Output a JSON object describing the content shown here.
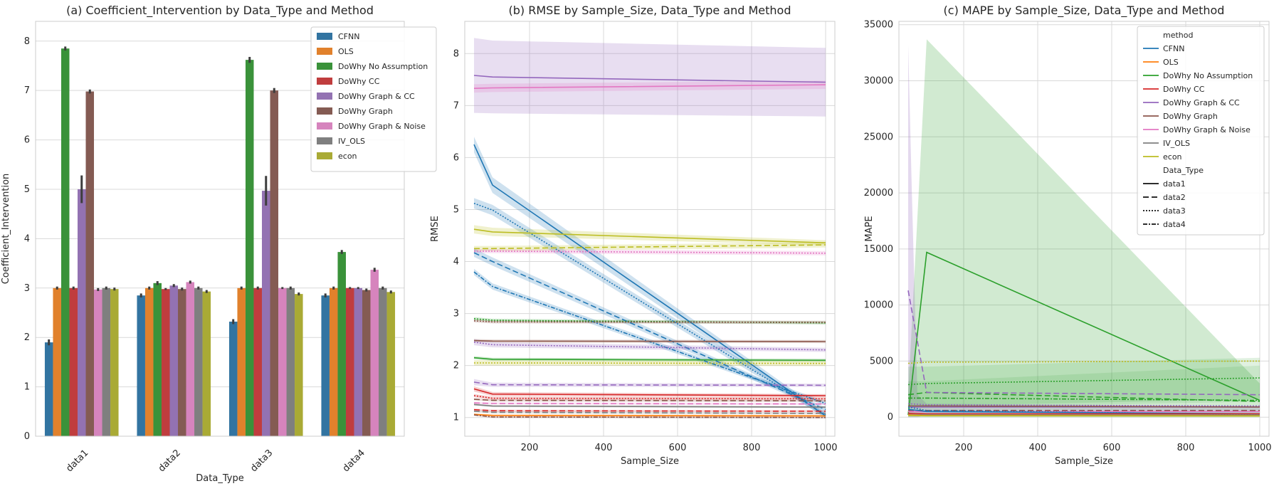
{
  "chart_data": [
    {
      "type": "bar",
      "title": "(a) Coefficient_Intervention by Data_Type and Method",
      "xlabel": "Data_Type",
      "ylabel": "Coefficient_Intervention",
      "ylim": [
        0,
        8.4
      ],
      "yticks": [
        0,
        1,
        2,
        3,
        4,
        5,
        6,
        7,
        8
      ],
      "grid": "y",
      "legend_position": "top-right",
      "categories": [
        "data1",
        "data2",
        "data3",
        "data4"
      ],
      "series": [
        {
          "name": "CFNN",
          "color": "#3274a1",
          "values": [
            1.9,
            2.85,
            2.32,
            2.85
          ],
          "err": [
            0.06,
            0.04,
            0.05,
            0.04
          ]
        },
        {
          "name": "OLS",
          "color": "#e1812c",
          "values": [
            3.0,
            3.0,
            3.0,
            3.0
          ],
          "err": [
            0.03,
            0.03,
            0.03,
            0.03
          ]
        },
        {
          "name": "DoWhy No Assumption",
          "color": "#3a923a",
          "values": [
            7.85,
            3.1,
            7.62,
            3.73
          ],
          "err": [
            0.04,
            0.04,
            0.06,
            0.04
          ]
        },
        {
          "name": "DoWhy CC",
          "color": "#c03d3e",
          "values": [
            3.0,
            2.98,
            3.0,
            3.0
          ],
          "err": [
            0.03,
            0.02,
            0.03,
            0.02
          ]
        },
        {
          "name": "DoWhy Graph & CC",
          "color": "#9372b2",
          "values": [
            5.0,
            3.05,
            4.97,
            3.0
          ],
          "err": [
            0.28,
            0.03,
            0.3,
            0.02
          ]
        },
        {
          "name": "DoWhy Graph",
          "color": "#845b53",
          "values": [
            6.98,
            2.98,
            7.0,
            2.96
          ],
          "err": [
            0.04,
            0.03,
            0.05,
            0.03
          ]
        },
        {
          "name": "DoWhy Graph & Noise",
          "color": "#d684bd",
          "values": [
            2.97,
            3.12,
            3.0,
            3.37
          ],
          "err": [
            0.03,
            0.03,
            0.02,
            0.04
          ]
        },
        {
          "name": "IV_OLS",
          "color": "#7f7f7f",
          "values": [
            3.0,
            3.0,
            3.0,
            3.0
          ],
          "err": [
            0.03,
            0.03,
            0.03,
            0.03
          ]
        },
        {
          "name": "econ",
          "color": "#a9aa35",
          "values": [
            2.98,
            2.93,
            2.88,
            2.92
          ],
          "err": [
            0.03,
            0.03,
            0.03,
            0.03
          ]
        }
      ]
    },
    {
      "type": "line",
      "title": "(b) RMSE by Sample_Size, Data_Type and Method",
      "xlabel": "Sample_Size",
      "ylabel": "RMSE",
      "xlim": [
        25,
        1025
      ],
      "ylim": [
        0.64,
        8.62
      ],
      "xticks": [
        200,
        400,
        600,
        800,
        1000
      ],
      "yticks": [
        1,
        2,
        3,
        4,
        5,
        6,
        7,
        8
      ],
      "grid": "both",
      "x": [
        50,
        100,
        1000
      ],
      "series": [
        {
          "method": "DoWhy Graph & CC",
          "data_type": "data1",
          "color": "#9467bd",
          "dash": "solid",
          "y": [
            7.58,
            7.55,
            7.45
          ],
          "band": [
            0.72,
            0.7,
            0.66
          ]
        },
        {
          "method": "DoWhy Graph & Noise",
          "data_type": "data1",
          "color": "#e377c2",
          "dash": "solid",
          "y": [
            7.33,
            7.34,
            7.4
          ],
          "band": [
            0.08,
            0.08,
            0.08
          ]
        },
        {
          "method": "CFNN",
          "data_type": "data1",
          "color": "#1f77b4",
          "dash": "solid",
          "y": [
            6.25,
            5.47,
            1.03
          ],
          "band": [
            0.15,
            0.15,
            0.05
          ]
        },
        {
          "method": "CFNN",
          "data_type": "data3",
          "color": "#1f77b4",
          "dash": "dotted",
          "y": [
            5.12,
            4.99,
            1.05
          ],
          "band": [
            0.1,
            0.1,
            0.05
          ]
        },
        {
          "method": "econ",
          "data_type": "data1",
          "color": "#bcbd22",
          "dash": "solid",
          "y": [
            4.62,
            4.57,
            4.36
          ],
          "band": [
            0.08,
            0.08,
            0.05
          ]
        },
        {
          "method": "econ",
          "data_type": "data2",
          "color": "#bcbd22",
          "dash": "dashed",
          "y": [
            4.25,
            4.25,
            4.32
          ],
          "band": [
            0.05,
            0.05,
            0.05
          ]
        },
        {
          "method": "DoWhy Graph & Noise",
          "data_type": "data3",
          "color": "#e377c2",
          "dash": "dotted",
          "y": [
            4.2,
            4.2,
            4.16
          ],
          "band": [
            0.04,
            0.04,
            0.04
          ]
        },
        {
          "method": "CFNN",
          "data_type": "data2",
          "color": "#1f77b4",
          "dash": "dashed",
          "y": [
            4.17,
            4.0,
            1.15
          ],
          "band": [
            0.08,
            0.08,
            0.04
          ]
        },
        {
          "method": "CFNN",
          "data_type": "data4",
          "color": "#1f77b4",
          "dash": "dashdot",
          "y": [
            3.8,
            3.52,
            1.27
          ],
          "band": [
            0.06,
            0.06,
            0.04
          ]
        },
        {
          "method": "DoWhy No Assumption",
          "data_type": "data3",
          "color": "#2ca02c",
          "dash": "dotted",
          "y": [
            2.9,
            2.87,
            2.82
          ],
          "band": [
            0.03,
            0.03,
            0.03
          ]
        },
        {
          "method": "DoWhy Graph",
          "data_type": "data3",
          "color": "#8c564b",
          "dash": "dotted",
          "y": [
            2.86,
            2.84,
            2.83
          ],
          "band": [
            0.03,
            0.03,
            0.03
          ]
        },
        {
          "method": "DoWhy Graph",
          "data_type": "data1",
          "color": "#8c564b",
          "dash": "solid",
          "y": [
            2.48,
            2.47,
            2.46
          ],
          "band": [
            0.03,
            0.03,
            0.03
          ]
        },
        {
          "method": "DoWhy Graph & CC",
          "data_type": "data3",
          "color": "#9467bd",
          "dash": "dotted",
          "y": [
            2.45,
            2.4,
            2.3
          ],
          "band": [
            0.06,
            0.05,
            0.04
          ]
        },
        {
          "method": "DoWhy No Assumption",
          "data_type": "data1",
          "color": "#2ca02c",
          "dash": "solid",
          "y": [
            2.15,
            2.12,
            2.1
          ],
          "band": [
            0.03,
            0.03,
            0.03
          ]
        },
        {
          "method": "econ",
          "data_type": "data3",
          "color": "#bcbd22",
          "dash": "dotted",
          "y": [
            2.05,
            2.05,
            2.04
          ],
          "band": [
            0.05,
            0.05,
            0.05
          ]
        },
        {
          "method": "DoWhy Graph & CC",
          "data_type": "data2",
          "color": "#9467bd",
          "dash": "dashed",
          "y": [
            1.68,
            1.63,
            1.62
          ],
          "band": [
            0.06,
            0.04,
            0.03
          ]
        },
        {
          "method": "DoWhy CC",
          "data_type": "data1",
          "color": "#d62728",
          "dash": "solid",
          "y": [
            1.55,
            1.45,
            1.42
          ],
          "band": [
            0.05,
            0.04,
            0.03
          ]
        },
        {
          "method": "DoWhy CC",
          "data_type": "data3",
          "color": "#d62728",
          "dash": "dotted",
          "y": [
            1.42,
            1.37,
            1.36
          ],
          "band": [
            0.03,
            0.03,
            0.03
          ]
        },
        {
          "method": "DoWhy Graph",
          "data_type": "data2",
          "color": "#8c564b",
          "dash": "dashed",
          "y": [
            1.35,
            1.33,
            1.32
          ],
          "band": [
            0.02,
            0.02,
            0.02
          ]
        },
        {
          "method": "DoWhy Graph & Noise",
          "data_type": "data2",
          "color": "#e377c2",
          "dash": "dashed",
          "y": [
            1.28,
            1.27,
            1.26
          ],
          "band": [
            0.02,
            0.02,
            0.02
          ]
        },
        {
          "method": "IV_OLS",
          "data_type": "data1",
          "color": "#7f7f7f",
          "dash": "solid",
          "y": [
            1.25,
            1.22,
            1.2
          ],
          "band": [
            0.02,
            0.02,
            0.02
          ]
        },
        {
          "method": "DoWhy CC",
          "data_type": "data2",
          "color": "#d62728",
          "dash": "dashed",
          "y": [
            1.15,
            1.13,
            1.12
          ],
          "band": [
            0.02,
            0.02,
            0.02
          ]
        },
        {
          "method": "IV_OLS",
          "data_type": "data2",
          "color": "#7f7f7f",
          "dash": "dashed",
          "y": [
            1.12,
            1.1,
            1.08
          ],
          "band": [
            0.02,
            0.02,
            0.02
          ]
        },
        {
          "method": "OLS",
          "data_type": "data1",
          "color": "#ff7f0e",
          "dash": "solid",
          "y": [
            1.06,
            1.04,
            1.03
          ],
          "band": [
            0.02,
            0.02,
            0.02
          ]
        },
        {
          "method": "DoWhy Graph",
          "data_type": "data4",
          "color": "#8c564b",
          "dash": "dashdot",
          "y": [
            1.05,
            1.01,
            1.0
          ],
          "band": [
            0.02,
            0.02,
            0.02
          ]
        }
      ]
    },
    {
      "type": "line",
      "title": "(c) MAPE by Sample_Size, Data_Type and Method",
      "xlabel": "Sample_Size",
      "ylabel": "MAPE",
      "xlim": [
        25,
        1025
      ],
      "ylim": [
        -1700,
        35300
      ],
      "xticks": [
        200,
        400,
        600,
        800,
        1000
      ],
      "yticks": [
        0,
        5000,
        10000,
        15000,
        20000,
        25000,
        30000,
        35000
      ],
      "grid": "both",
      "legend_position": "top-right",
      "legend": {
        "method_header": "method",
        "methods": [
          {
            "name": "CFNN",
            "color": "#1f77b4"
          },
          {
            "name": "OLS",
            "color": "#ff7f0e"
          },
          {
            "name": "DoWhy No Assumption",
            "color": "#2ca02c"
          },
          {
            "name": "DoWhy CC",
            "color": "#d62728"
          },
          {
            "name": "DoWhy Graph & CC",
            "color": "#9467bd"
          },
          {
            "name": "DoWhy Graph",
            "color": "#8c564b"
          },
          {
            "name": "DoWhy Graph & Noise",
            "color": "#e377c2"
          },
          {
            "name": "IV_OLS",
            "color": "#7f7f7f"
          },
          {
            "name": "econ",
            "color": "#bcbd22"
          }
        ],
        "type_header": "Data_Type",
        "types": [
          {
            "name": "data1",
            "dash": "solid"
          },
          {
            "name": "data2",
            "dash": "dashed"
          },
          {
            "name": "data3",
            "dash": "dotted"
          },
          {
            "name": "data4",
            "dash": "dashdot"
          }
        ]
      },
      "bands": [
        {
          "color": "#2ca02c",
          "opacity": 0.22,
          "upper": [
            [
              50,
              2000
            ],
            [
              100,
              33700
            ],
            [
              1000,
              3000
            ]
          ],
          "lower": [
            [
              50,
              0
            ],
            [
              100,
              0
            ],
            [
              1000,
              0
            ]
          ]
        },
        {
          "color": "#9467bd",
          "opacity": 0.25,
          "upper": [
            [
              50,
              33200
            ],
            [
              60,
              20000
            ],
            [
              75,
              2000
            ],
            [
              100,
              1200
            ],
            [
              1000,
              1000
            ]
          ],
          "lower": [
            [
              50,
              0
            ],
            [
              75,
              0
            ],
            [
              100,
              200
            ],
            [
              1000,
              200
            ]
          ]
        },
        {
          "color": "#2ca02c",
          "opacity": 0.15,
          "upper": [
            [
              50,
              4500
            ],
            [
              100,
              4500
            ],
            [
              1000,
              5300
            ]
          ],
          "lower": [
            [
              50,
              1000
            ],
            [
              100,
              1000
            ],
            [
              1000,
              1600
            ]
          ]
        },
        {
          "color": "#2ca02c",
          "opacity": 0.12,
          "upper": [
            [
              50,
              3200
            ],
            [
              100,
              3200
            ],
            [
              1000,
              4600
            ]
          ],
          "lower": [
            [
              50,
              800
            ],
            [
              100,
              800
            ],
            [
              1000,
              1400
            ]
          ]
        }
      ],
      "x": [
        50,
        100,
        1000
      ],
      "series": [
        {
          "method": "DoWhy No Assumption",
          "data_type": "data1",
          "color": "#2ca02c",
          "dash": "solid",
          "y": [
            200,
            14700,
            1500
          ]
        },
        {
          "method": "DoWhy No Assumption",
          "data_type": "data3",
          "color": "#2ca02c",
          "dash": "dotted",
          "y": [
            2900,
            3000,
            3500
          ]
        },
        {
          "method": "DoWhy No Assumption",
          "data_type": "data2",
          "color": "#2ca02c",
          "dash": "dashed",
          "y": [
            2000,
            2200,
            1400
          ]
        },
        {
          "method": "DoWhy No Assumption",
          "data_type": "data4",
          "color": "#2ca02c",
          "dash": "dashdot",
          "y": [
            1700,
            1700,
            1500
          ]
        },
        {
          "method": "DoWhy Graph & CC",
          "data_type": "data2",
          "color": "#9467bd",
          "dash": "dashed",
          "y": [
            11300,
            2200,
            2000
          ]
        },
        {
          "method": "DoWhy Graph & CC",
          "data_type": "data1",
          "color": "#9467bd",
          "dash": "solid",
          "y": [
            900,
            900,
            900
          ]
        },
        {
          "method": "DoWhy Graph & CC",
          "data_type": "data3",
          "color": "#9467bd",
          "dash": "dotted",
          "y": [
            1200,
            1100,
            1000
          ]
        },
        {
          "method": "DoWhy Graph",
          "data_type": "data1",
          "color": "#8c564b",
          "dash": "solid",
          "y": [
            1000,
            1000,
            900
          ]
        },
        {
          "method": "DoWhy Graph",
          "data_type": "data2",
          "color": "#8c564b",
          "dash": "dashed",
          "y": [
            600,
            600,
            600
          ]
        },
        {
          "method": "DoWhy Graph & Noise",
          "data_type": "data1",
          "color": "#e377c2",
          "dash": "solid",
          "y": [
            500,
            500,
            500
          ]
        },
        {
          "method": "CFNN",
          "data_type": "data1",
          "color": "#1f77b4",
          "dash": "solid",
          "y": [
            700,
            500,
            300
          ]
        },
        {
          "method": "CFNN",
          "data_type": "data3",
          "color": "#1f77b4",
          "dash": "dotted",
          "y": [
            900,
            600,
            250
          ]
        },
        {
          "method": "DoWhy CC",
          "data_type": "data1",
          "color": "#d62728",
          "dash": "solid",
          "y": [
            350,
            300,
            300
          ]
        },
        {
          "method": "IV_OLS",
          "data_type": "data1",
          "color": "#7f7f7f",
          "dash": "solid",
          "y": [
            250,
            200,
            200
          ]
        },
        {
          "method": "OLS",
          "data_type": "data1",
          "color": "#ff7f0e",
          "dash": "solid",
          "y": [
            200,
            150,
            120
          ]
        },
        {
          "method": "econ",
          "data_type": "data1",
          "color": "#bcbd22",
          "dash": "solid",
          "y": [
            150,
            120,
            100
          ]
        },
        {
          "method": "econ",
          "data_type": "data3",
          "color": "#bcbd22",
          "dash": "dotted",
          "y": [
            4800,
            4900,
            5000
          ]
        }
      ]
    }
  ]
}
